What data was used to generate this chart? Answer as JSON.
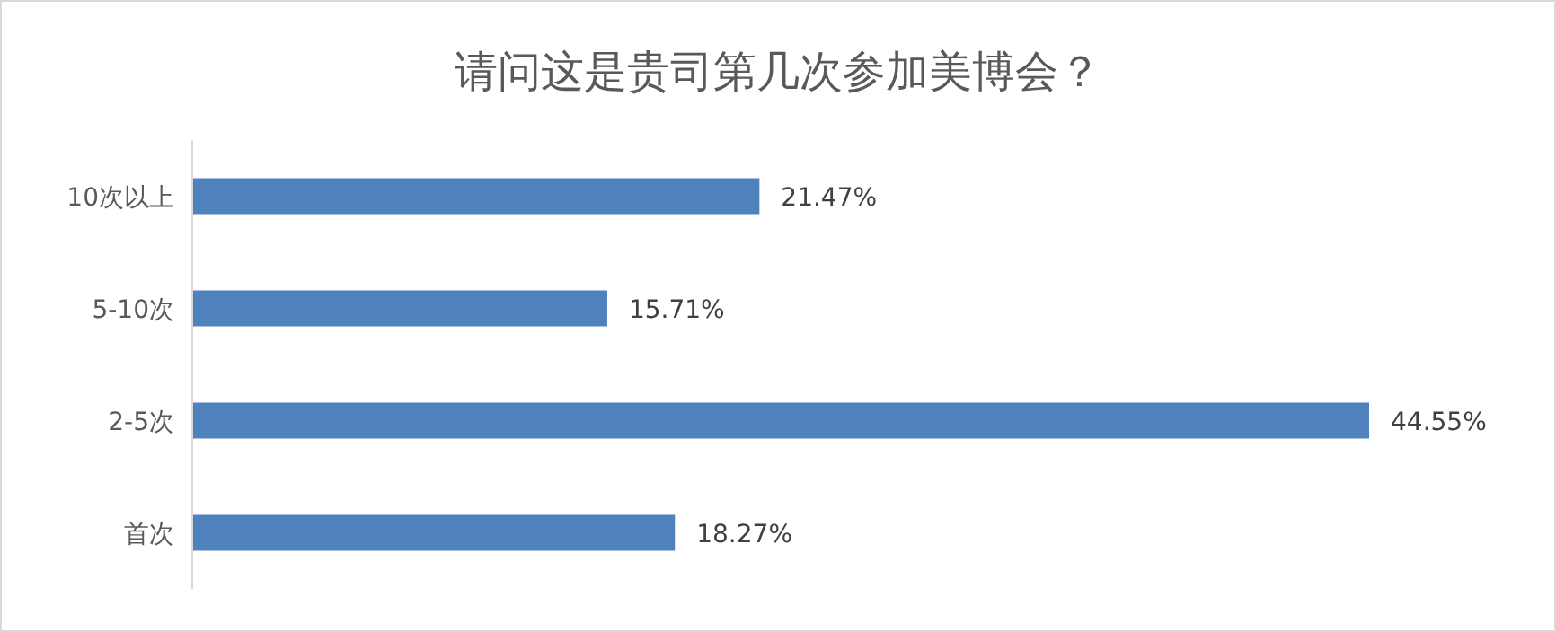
{
  "chart_data": {
    "type": "bar",
    "orientation": "horizontal",
    "title": "请问这是贵司第几次参加美博会？",
    "categories": [
      "10次以上",
      "5-10次",
      "2-5次",
      "首次"
    ],
    "values": [
      21.47,
      15.71,
      44.55,
      18.27
    ],
    "value_labels": [
      "21.47%",
      "15.71%",
      "44.55%",
      "18.27%"
    ],
    "color": "#4f81bd"
  }
}
